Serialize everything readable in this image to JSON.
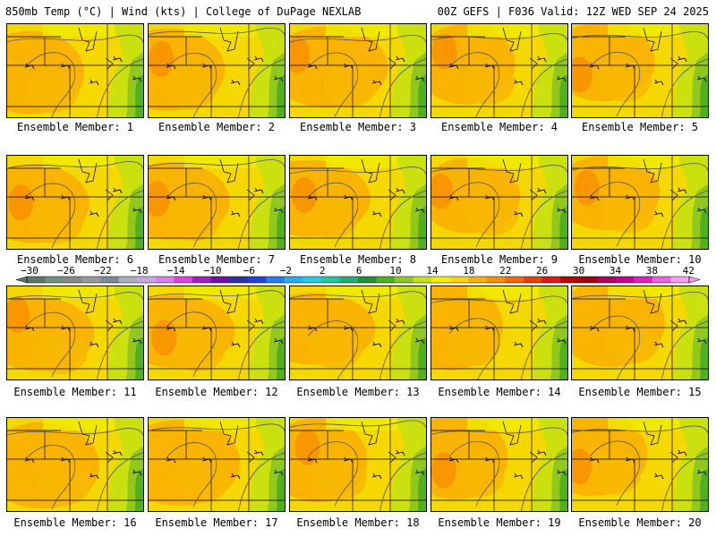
{
  "header": {
    "left": "850mb Temp (°C) | Wind (kts) | College of DuPage NEXLAB",
    "right": "00Z GEFS | F036 Valid: 12Z WED SEP 24 2025"
  },
  "panels": [
    {
      "label": "Ensemble Member: 1"
    },
    {
      "label": "Ensemble Member: 2"
    },
    {
      "label": "Ensemble Member: 3"
    },
    {
      "label": "Ensemble Member: 4"
    },
    {
      "label": "Ensemble Member: 5"
    },
    {
      "label": "Ensemble Member: 6"
    },
    {
      "label": "Ensemble Member: 7"
    },
    {
      "label": "Ensemble Member: 8"
    },
    {
      "label": "Ensemble Member: 9"
    },
    {
      "label": "Ensemble Member: 10"
    },
    {
      "label": "Ensemble Member: 11"
    },
    {
      "label": "Ensemble Member: 12"
    },
    {
      "label": "Ensemble Member: 13"
    },
    {
      "label": "Ensemble Member: 14"
    },
    {
      "label": "Ensemble Member: 15"
    },
    {
      "label": "Ensemble Member: 16"
    },
    {
      "label": "Ensemble Member: 17"
    },
    {
      "label": "Ensemble Member: 18"
    },
    {
      "label": "Ensemble Member: 19"
    },
    {
      "label": "Ensemble Member: 20"
    }
  ],
  "colorbar": {
    "labels": [
      "−30",
      "−26",
      "−22",
      "−18",
      "−14",
      "−10",
      "−6",
      "−2",
      "2",
      "6",
      "10",
      "14",
      "18",
      "22",
      "26",
      "30",
      "34",
      "38",
      "42"
    ],
    "colors": [
      "#5a7a6a",
      "#6f8f7f",
      "#888888",
      "#9a9a9a",
      "#7a8a9a",
      "#aab0c0",
      "#c8a8e0",
      "#d880e8",
      "#e040e0",
      "#a020c8",
      "#7010b0",
      "#3030a8",
      "#2040e0",
      "#2080f0",
      "#20b0f0",
      "#20d0e0",
      "#20c8a0",
      "#20b070",
      "#209030",
      "#50b020",
      "#90c820",
      "#c8e010",
      "#f0f000",
      "#f8d800",
      "#f8b000",
      "#f89000",
      "#f86800",
      "#f04000",
      "#e01818",
      "#c00000",
      "#a00010",
      "#b00060",
      "#c80090",
      "#e020c0",
      "#f060e0",
      "#f8a0f0"
    ]
  }
}
